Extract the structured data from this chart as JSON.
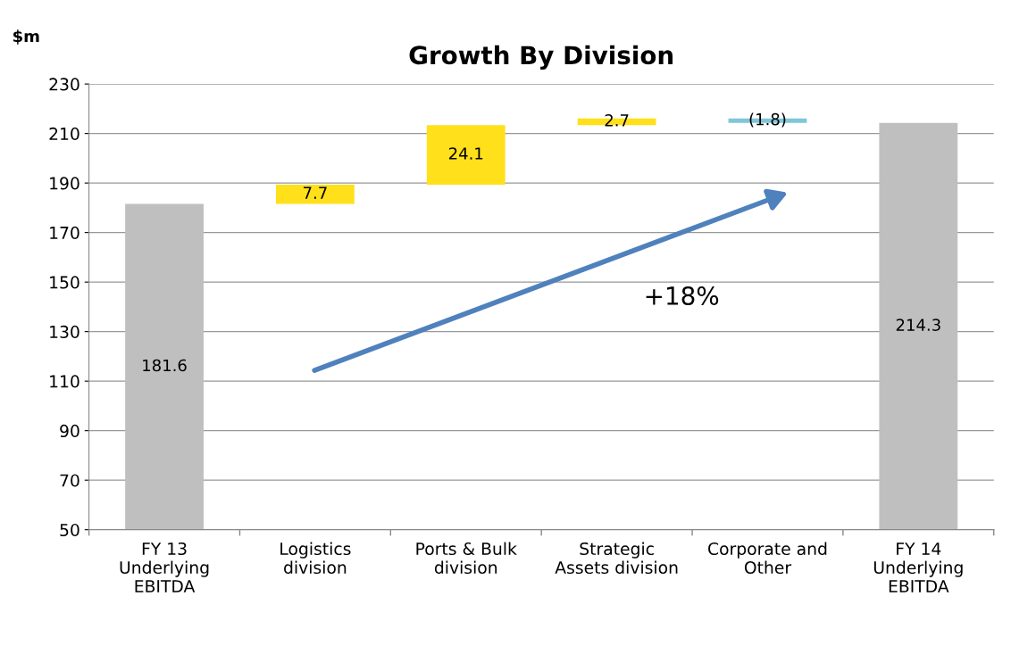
{
  "chart_data": {
    "type": "bar",
    "title": "Growth By Division",
    "ylabel": "$m",
    "categories": [
      "FY 13\nUnderlying\nEBITDA",
      "Logistics\ndivision",
      "Ports & Bulk\ndivision",
      "Strategic\nAssets division",
      "Corporate and\nOther",
      "FY 14\nUnderlying\nEBITDA"
    ],
    "values": [
      181.6,
      7.7,
      24.1,
      2.7,
      -1.8,
      214.3
    ],
    "base": [
      null,
      181.6,
      189.3,
      213.4,
      216.1,
      null
    ],
    "colors": [
      "#bfbfbf",
      "#ffe01a",
      "#ffe01a",
      "#ffe01a",
      "#7fc6d8",
      "#bfbfbf"
    ],
    "value_labels": [
      "181.6",
      "7.7",
      "24.1",
      "2.7",
      "(1.8)",
      "214.3"
    ],
    "annotations": [
      "+18%"
    ],
    "ylim": [
      50,
      230
    ],
    "yticks": [
      50,
      70,
      90,
      110,
      130,
      150,
      170,
      190,
      210,
      230
    ],
    "grid": "y",
    "legend": false
  }
}
